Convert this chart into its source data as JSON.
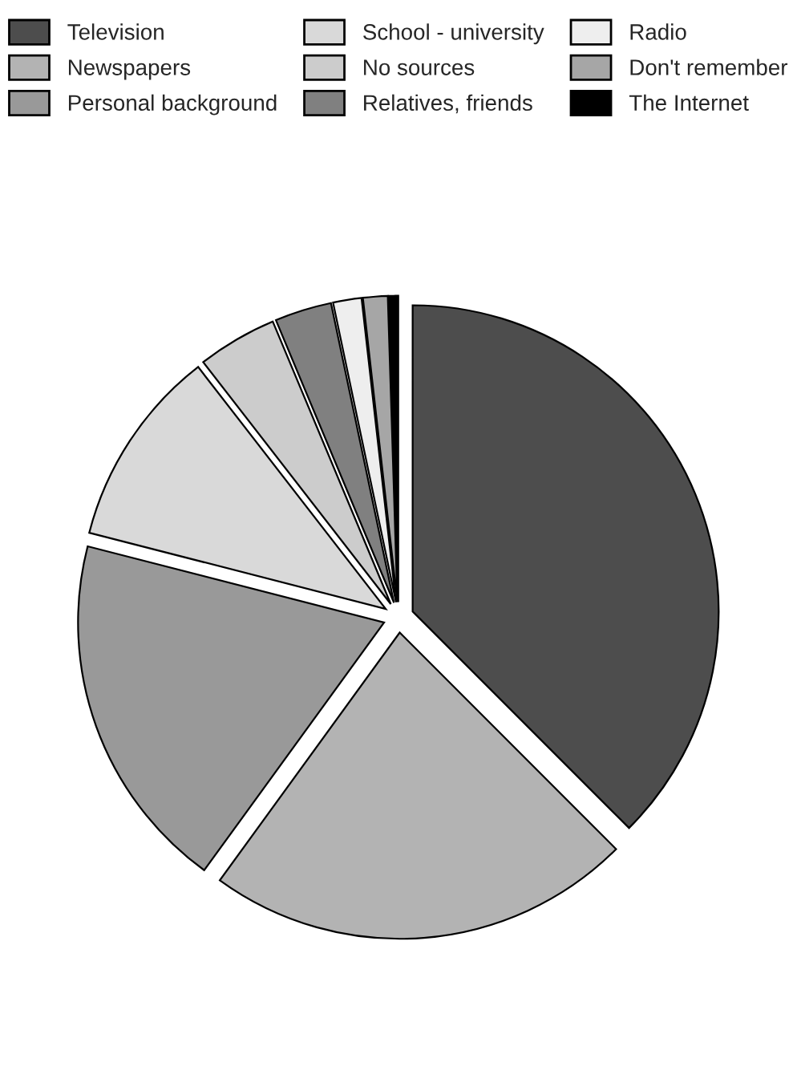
{
  "chart_data": {
    "type": "pie",
    "categories": [
      "Television",
      "Newspapers",
      "Personal background",
      "School - university",
      "No sources",
      "Relatives, friends",
      "Radio",
      "Don't remember",
      "The Internet"
    ],
    "values": [
      37.5,
      22.5,
      19,
      10.5,
      4.2,
      3,
      1.5,
      1.3,
      0.5
    ],
    "colors": [
      "#4d4d4d",
      "#b3b3b3",
      "#999999",
      "#d9d9d9",
      "#cccccc",
      "#808080",
      "#eeeeee",
      "#a6a6a6",
      "#000000"
    ],
    "legend": "top"
  }
}
